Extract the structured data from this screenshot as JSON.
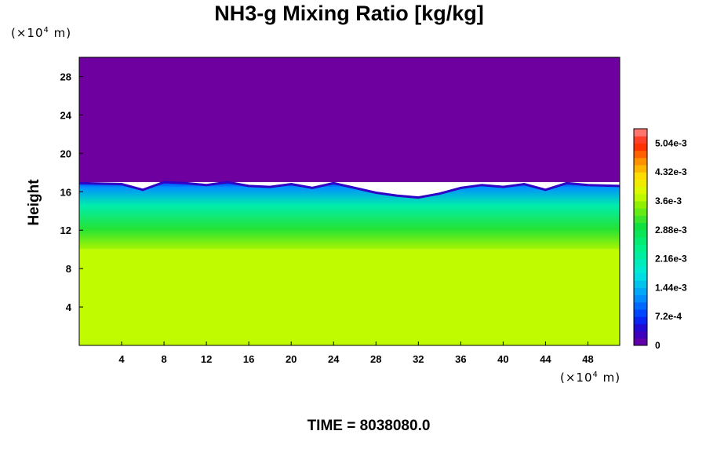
{
  "chart_data": {
    "type": "heatmap",
    "title": "NH3-g Mixing Ratio [kg/kg]",
    "xlabel": "",
    "ylabel": "Height",
    "x_unit_label": "(×10",
    "x_unit_exp": "4",
    "x_unit_suffix": " m)",
    "y_unit_label": "(×10",
    "y_unit_exp": "4",
    "y_unit_suffix": " m)",
    "xlim": [
      0,
      51
    ],
    "ylim": [
      0,
      30
    ],
    "x_ticks": [
      4,
      8,
      12,
      16,
      20,
      24,
      28,
      32,
      36,
      40,
      44,
      48
    ],
    "y_ticks": [
      4,
      8,
      12,
      16,
      20,
      24,
      28
    ],
    "colorbar": {
      "range": [
        0,
        0.0054
      ],
      "tick_values": [
        0,
        0.00072,
        0.00144,
        0.00216,
        0.00288,
        0.0036,
        0.00432,
        0.00504
      ],
      "tick_labels": [
        "0",
        "7.2e-4",
        "1.44e-3",
        "2.16e-3",
        "2.88e-3",
        "3.6e-3",
        "4.32e-3",
        "5.04e-3"
      ],
      "levels": 30
    },
    "fields": {
      "upper_layer": {
        "y_from": 17,
        "y_to": 30,
        "value": 0
      },
      "lower_layer": {
        "y_from": 0,
        "y_to": 10,
        "value": 0.0037
      },
      "mixed_layer": {
        "y_from": 10,
        "y_to": 17,
        "value_range": [
          0.0012,
          0.0036
        ]
      }
    },
    "cloud_top_height": [
      [
        0,
        16.9
      ],
      [
        4,
        16.8
      ],
      [
        6,
        16.2
      ],
      [
        8,
        17.0
      ],
      [
        10,
        16.9
      ],
      [
        12,
        16.7
      ],
      [
        14,
        17.0
      ],
      [
        16,
        16.6
      ],
      [
        18,
        16.5
      ],
      [
        20,
        16.8
      ],
      [
        22,
        16.4
      ],
      [
        24,
        16.9
      ],
      [
        26,
        16.4
      ],
      [
        28,
        15.9
      ],
      [
        30,
        15.6
      ],
      [
        32,
        15.4
      ],
      [
        34,
        15.8
      ],
      [
        36,
        16.4
      ],
      [
        38,
        16.7
      ],
      [
        40,
        16.5
      ],
      [
        42,
        16.8
      ],
      [
        44,
        16.2
      ],
      [
        46,
        16.9
      ],
      [
        48,
        16.7
      ],
      [
        51,
        16.6
      ]
    ],
    "grid": false,
    "legend": "colorbar-right"
  },
  "footer": {
    "time_label": "TIME = 8038080.0"
  }
}
